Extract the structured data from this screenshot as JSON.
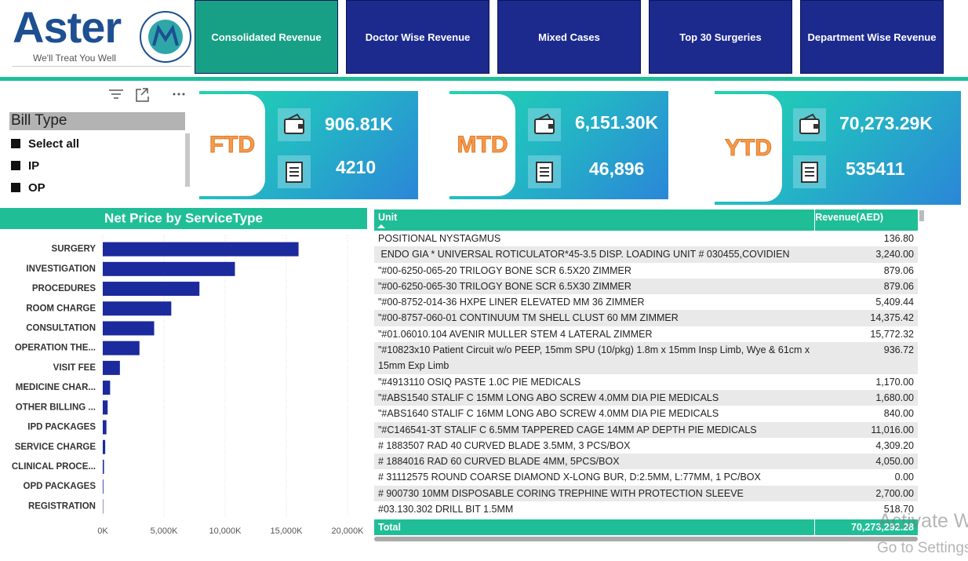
{
  "header": {
    "logo": "Aster",
    "tagline": "We'll Treat You Well"
  },
  "nav": [
    "Consolidated Revenue",
    "Doctor Wise Revenue",
    "Mixed Cases",
    "Top 30 Surgeries",
    "Department Wise Revenue"
  ],
  "slicer": {
    "title": "Bill Type",
    "options": [
      "Select all",
      "IP",
      "OP"
    ]
  },
  "kpis": [
    {
      "period": "FTD",
      "revenue": "906.81K",
      "count": "4210"
    },
    {
      "period": "MTD",
      "revenue": "6,151.30K",
      "count": "46,896"
    },
    {
      "period": "YTD",
      "revenue": "70,273.29K",
      "count": "535411"
    }
  ],
  "chart_data": {
    "type": "bar",
    "orientation": "horizontal",
    "title": "Net Price by ServiceType",
    "categories": [
      "SURGERY",
      "INVESTIGATION",
      "PROCEDURES",
      "ROOM CHARGE",
      "CONSULTATION",
      "OPERATION THE...",
      "VISIT FEE",
      "MEDICINE CHAR...",
      "OTHER BILLING ...",
      "IPD PACKAGES",
      "SERVICE CHARGE",
      "CLINICAL PROCE...",
      "OPD PACKAGES",
      "REGISTRATION"
    ],
    "values": [
      16000,
      10800,
      7900,
      5600,
      4200,
      3000,
      1400,
      600,
      400,
      300,
      200,
      100,
      50,
      30
    ],
    "color": "#1b2a9c",
    "xlim": [
      0,
      20000
    ],
    "xticks": [
      {
        "value": 0,
        "label": "0K"
      },
      {
        "value": 5000,
        "label": "5,000K"
      },
      {
        "value": 10000,
        "label": "10,000K"
      },
      {
        "value": 15000,
        "label": "15,000K"
      },
      {
        "value": 20000,
        "label": "20,000K"
      }
    ],
    "grid": true
  },
  "table": {
    "columns": [
      "Unit",
      "Revenue(AED)"
    ],
    "rows": [
      [
        "POSITIONAL NYSTAGMUS",
        "136.80"
      ],
      [
        " ENDO GIA * UNIVERSAL ROTICULATOR*45-3.5 DISP. LOADING UNIT # 030455,COVIDIEN",
        "3,240.00"
      ],
      [
        "\"#00-6250-065-20 TRILOGY BONE SCR 6.5X20 ZIMMER",
        "879.06"
      ],
      [
        "\"#00-6250-065-30 TRILOGY BONE SCR 6.5X30 ZIMMER",
        "879.06"
      ],
      [
        "\"#00-8752-014-36 HXPE LINER ELEVATED MM 36 ZIMMER",
        "5,409.44"
      ],
      [
        "\"#00-8757-060-01 CONTINUUM TM SHELL CLUST 60 MM ZIMMER",
        "14,375.42"
      ],
      [
        "\"#01.06010.104 AVENIR MULLER STEM 4 LATERAL ZIMMER",
        "15,772.32"
      ],
      [
        "\"#10823x10 Patient Circuit w/o PEEP, 15mm SPU (10/pkg) 1.8m x 15mm Insp Limb, Wye & 61cm x 15mm Exp Limb",
        "936.72"
      ],
      [
        "\"#4913110 OSIQ PASTE 1.0C PIE MEDICALS",
        "1,170.00"
      ],
      [
        "\"#ABS1540 STALIF C 15MM LONG ABO SCREW 4.0MM DIA PIE MEDICALS",
        "1,680.00"
      ],
      [
        "\"#ABS1640 STALIF C 16MM LONG ABO SCREW 4.0MM DIA PIE MEDICALS",
        "840.00"
      ],
      [
        "\"#C146541-3T STALIF C 6.5MM TAPPERED CAGE 14MM AP DEPTH PIE MEDICALS",
        "11,016.00"
      ],
      [
        "# 1883507 RAD 40 CURVED BLADE 3.5MM, 3 PCS/BOX",
        "4,309.20"
      ],
      [
        "# 1884016 RAD 60 CURVED BLADE 4MM, 5PCS/BOX",
        "4,050.00"
      ],
      [
        "# 31112575 ROUND COARSE DIAMOND X-LONG BUR, D:2.5MM, L:77MM, 1 PC/BOX",
        "0.00"
      ],
      [
        "# 900730 10MM DISPOSABLE CORING TREPHINE WITH PROTECTION SLEEVE",
        "2,700.00"
      ],
      [
        "#03.130.302 DRILL BIT 1.5MM",
        "518.70"
      ]
    ],
    "total": [
      "Total",
      "70,273,292.28"
    ]
  },
  "watermark": [
    "Activate Windows",
    "Go to Settings to activate Windows."
  ]
}
